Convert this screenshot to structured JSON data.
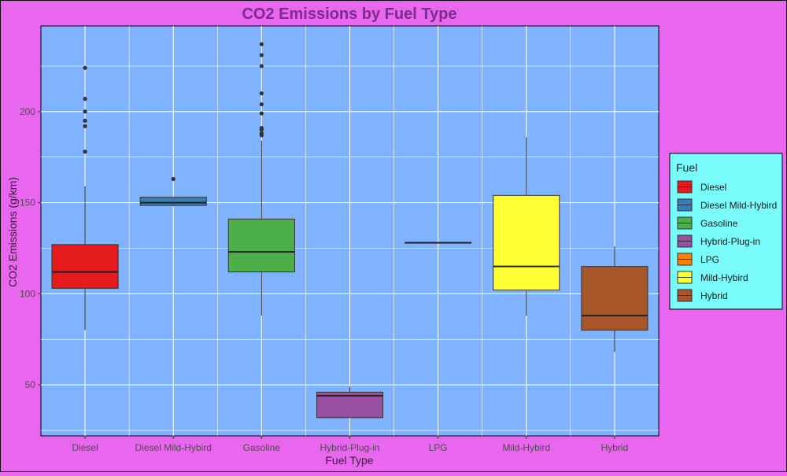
{
  "colors": {
    "background": "#e966ee",
    "panel": "#7fb2ff",
    "grid": "#ffffff",
    "legend_bg": "#7afcfc",
    "title": "#7b2c8c"
  },
  "chart_data": {
    "type": "boxplot",
    "title": "CO2 Emissions by Fuel Type",
    "xlabel": "Fuel Type",
    "ylabel": "CO2 Emissions (g/km)",
    "ylim": [
      22,
      247
    ],
    "yticks": [
      50,
      100,
      150,
      200
    ],
    "grid": true,
    "legend": {
      "title": "Fuel",
      "placement": "right",
      "entries": [
        "Diesel",
        "Diesel Mild-Hybird",
        "Gasoline",
        "Hybrid-Plug-in",
        "LPG",
        "Mild-Hybird",
        "Hybrid"
      ]
    },
    "categories": [
      "Diesel",
      "Diesel Mild-Hybird",
      "Gasoline",
      "Hybrid-Plug-in",
      "LPG",
      "Mild-Hybird",
      "Hybrid"
    ],
    "boxes": [
      {
        "category": "Diesel",
        "color": "#e41a1c",
        "min": 80,
        "q1": 103,
        "median": 112,
        "q3": 127,
        "max": 159,
        "outliers": [
          178,
          192,
          195,
          200,
          207,
          224
        ]
      },
      {
        "category": "Diesel Mild-Hybird",
        "color": "#377eb8",
        "min": 148,
        "q1": 148.5,
        "median": 150,
        "q3": 153,
        "max": 153,
        "outliers": [
          163
        ]
      },
      {
        "category": "Gasoline",
        "color": "#4daf4a",
        "min": 88,
        "q1": 112,
        "median": 123,
        "q3": 141,
        "max": 184,
        "outliers": [
          187,
          188,
          190,
          191,
          199,
          204,
          210,
          225,
          231,
          237
        ]
      },
      {
        "category": "Hybrid-Plug-in",
        "color": "#984ea3",
        "min": 32,
        "q1": 32,
        "median": 44,
        "q3": 46,
        "max": 49,
        "outliers": []
      },
      {
        "category": "LPG",
        "color": "#ff7f00",
        "min": 128,
        "q1": 128,
        "median": 128,
        "q3": 128,
        "max": 128,
        "outliers": []
      },
      {
        "category": "Mild-Hybird",
        "color": "#ffff33",
        "min": 88,
        "q1": 102,
        "median": 115,
        "q3": 154,
        "max": 186,
        "outliers": []
      },
      {
        "category": "Hybrid",
        "color": "#a65628",
        "min": 68,
        "q1": 80,
        "median": 88,
        "q3": 115,
        "max": 126,
        "outliers": []
      }
    ]
  }
}
